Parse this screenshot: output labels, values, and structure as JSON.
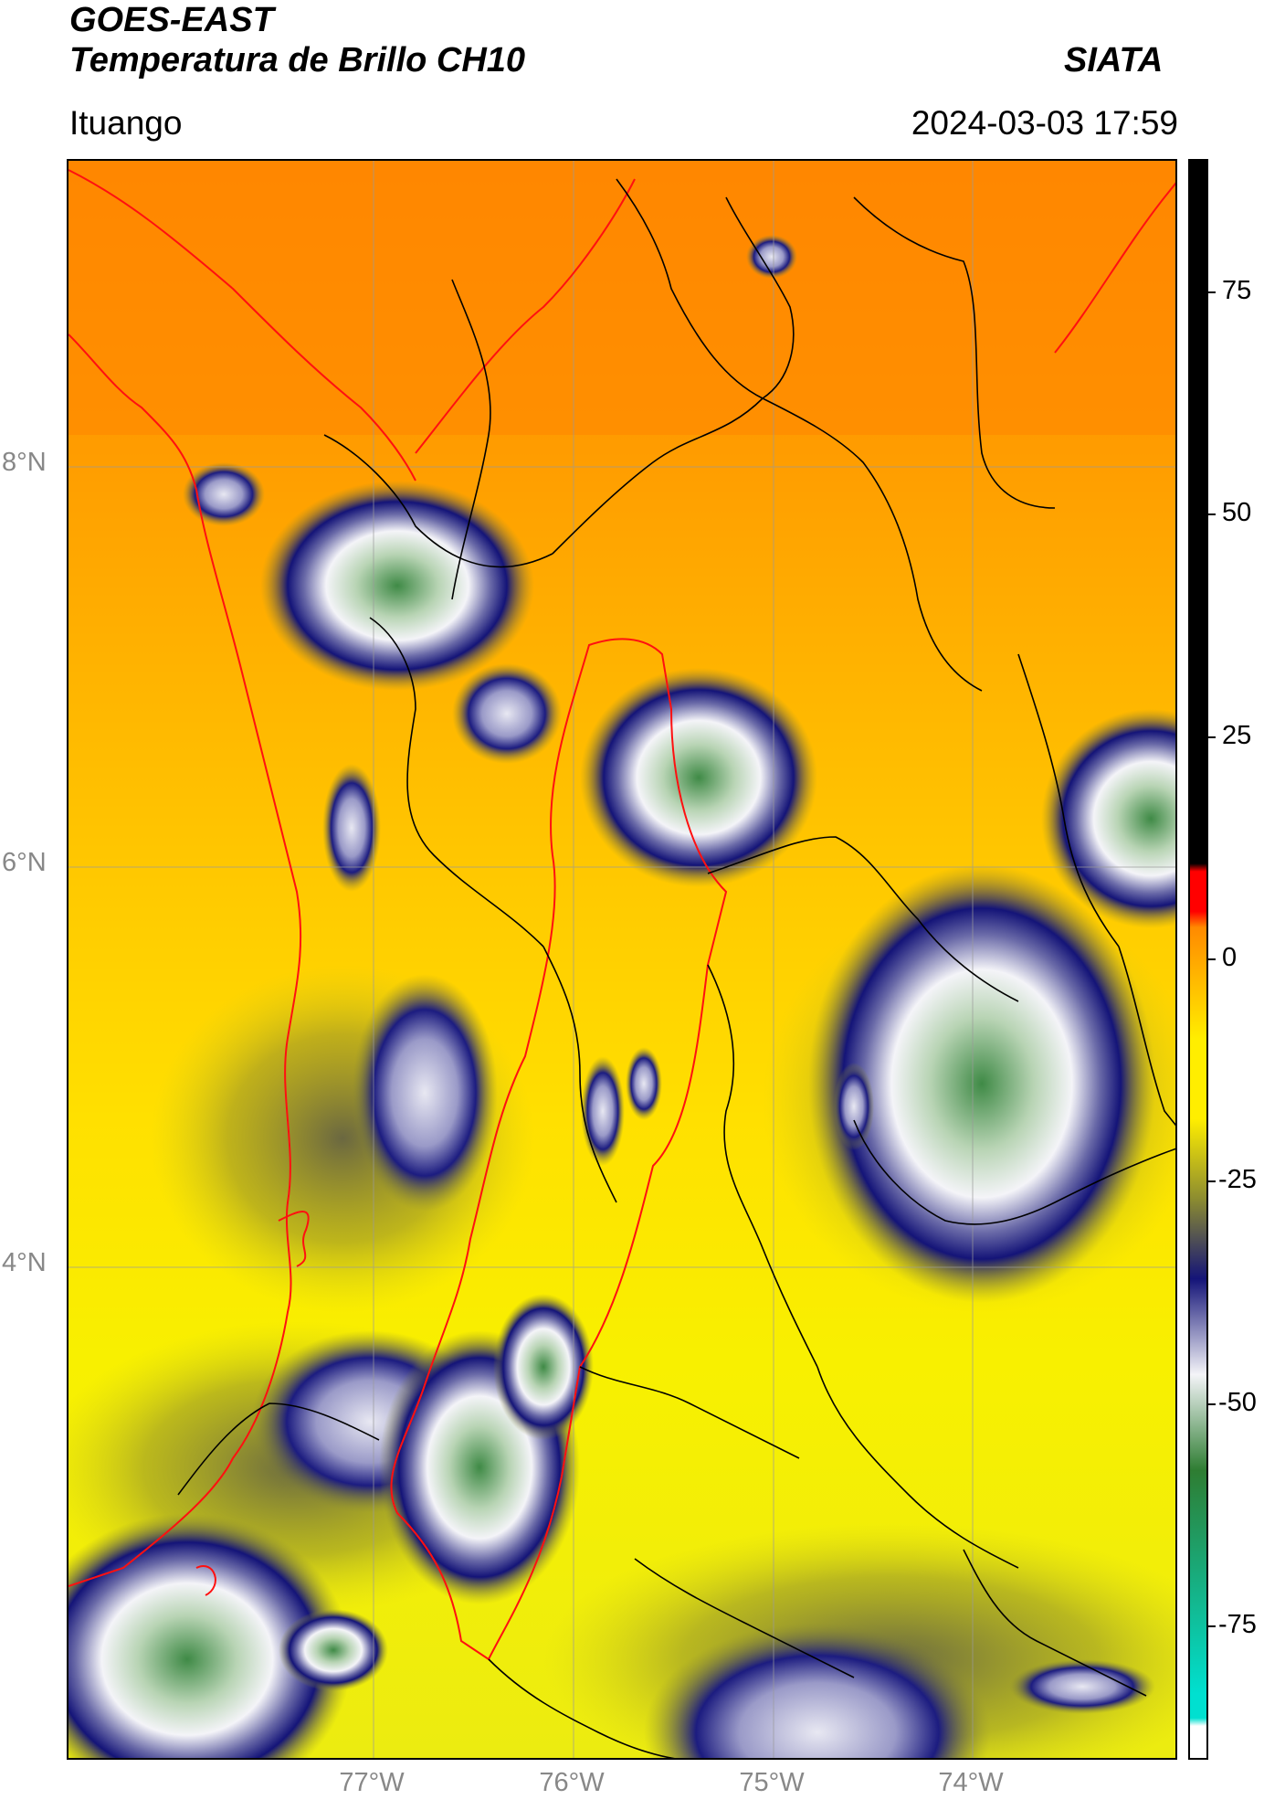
{
  "header": {
    "satellite": "GOES-EAST",
    "product": "Temperatura de Brillo CH10",
    "org": "SIATA",
    "location": "Ituango",
    "datetime": "2024-03-03 17:59"
  },
  "map": {
    "lat_labels": [
      "8°N",
      "6°N",
      "4°N"
    ],
    "lon_labels": [
      "77°W",
      "76°W",
      "75°W",
      "74°W"
    ]
  },
  "colorbar": {
    "ticks": [
      "75",
      "50",
      "25",
      "0",
      "-25",
      "-50",
      "-75"
    ],
    "tick_values": [
      75,
      50,
      25,
      0,
      -25,
      -50,
      -75
    ],
    "range": [
      -90,
      90
    ],
    "colors": {
      "warm": "#000000",
      "red": "#ff0000",
      "orange": "#ff8a00",
      "yellow": "#ffee00",
      "olive": "#8c8c30",
      "navy": "#141478",
      "white": "#f4f4f8",
      "green": "#2e7d32",
      "cyan": "#00e0d0"
    }
  }
}
